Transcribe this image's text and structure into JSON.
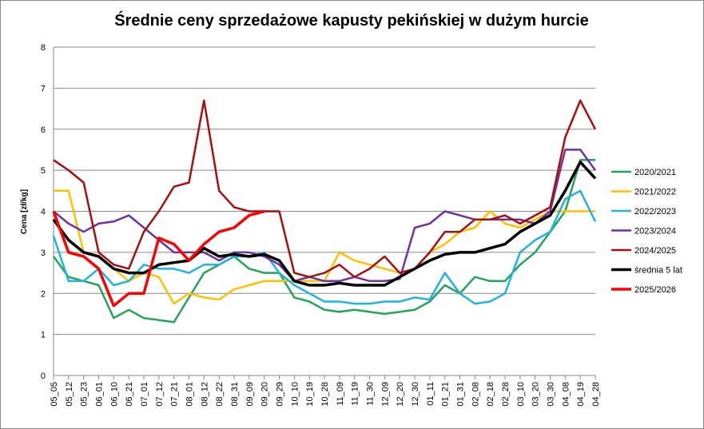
{
  "chart_data": {
    "type": "line",
    "title": "Średnie ceny sprzedażowe kapusty pekińskiej w dużym hurcie",
    "y_label": "Cena [zł/kg]",
    "categories": [
      "05_05",
      "05_12",
      "05_23",
      "06_01",
      "06_10",
      "06_21",
      "07_01",
      "07_12",
      "07_21",
      "08_01",
      "08_12",
      "08_22",
      "08_31",
      "09_09",
      "09_20",
      "09_29",
      "10_10",
      "10_19",
      "10_28",
      "11_09",
      "11_19",
      "11_30",
      "12_09",
      "12_20",
      "12_30",
      "01_11",
      "01_21",
      "01_31",
      "02_08",
      "02_18",
      "02_28",
      "03_10",
      "03_20",
      "03_30",
      "04_08",
      "04_19",
      "04_28"
    ],
    "ylim": [
      0,
      8
    ],
    "yticks": [
      0,
      1,
      2,
      3,
      4,
      5,
      6,
      7,
      8
    ],
    "grid": true,
    "legend": "right",
    "series": [
      {
        "name": "2020/2021",
        "color": "#23a45a",
        "values": [
          2.9,
          2.4,
          2.3,
          2.2,
          1.4,
          1.6,
          1.4,
          1.35,
          1.3,
          1.9,
          2.5,
          2.7,
          2.9,
          2.6,
          2.5,
          2.5,
          1.9,
          1.8,
          1.6,
          1.55,
          1.6,
          1.55,
          1.5,
          1.55,
          1.6,
          1.8,
          2.2,
          2.0,
          2.4,
          2.3,
          2.3,
          2.7,
          3.0,
          3.5,
          4.0,
          5.25,
          5.25
        ]
      },
      {
        "name": "2021/2022",
        "color": "#ffc000",
        "values": [
          4.5,
          4.5,
          3.0,
          2.9,
          2.6,
          2.3,
          2.5,
          2.4,
          1.75,
          2.0,
          1.9,
          1.85,
          2.1,
          2.2,
          2.3,
          2.3,
          2.3,
          2.3,
          2.3,
          3.0,
          2.8,
          2.7,
          2.6,
          2.5,
          2.6,
          3.0,
          3.2,
          3.5,
          3.6,
          4.0,
          3.7,
          3.6,
          3.8,
          4.0,
          4.0,
          4.0,
          4.0
        ]
      },
      {
        "name": "2022/2023",
        "color": "#1fb3e0",
        "values": [
          3.4,
          2.3,
          2.3,
          2.6,
          2.2,
          2.3,
          2.7,
          2.6,
          2.6,
          2.5,
          2.7,
          2.7,
          2.9,
          2.9,
          3.0,
          2.5,
          2.2,
          2.0,
          1.8,
          1.8,
          1.75,
          1.75,
          1.8,
          1.8,
          1.9,
          1.85,
          2.5,
          2.0,
          1.75,
          1.8,
          2.0,
          3.0,
          3.3,
          3.5,
          4.3,
          4.5,
          3.75
        ]
      },
      {
        "name": "2023/2024",
        "color": "#7030a0",
        "values": [
          4.0,
          3.7,
          3.5,
          3.7,
          3.75,
          3.9,
          3.6,
          3.3,
          3.0,
          3.0,
          3.0,
          2.8,
          3.0,
          3.0,
          2.9,
          2.7,
          2.3,
          2.4,
          2.3,
          2.3,
          2.4,
          2.3,
          2.3,
          2.35,
          3.6,
          3.7,
          4.0,
          3.9,
          3.8,
          3.8,
          3.8,
          3.8,
          3.7,
          4.0,
          5.5,
          5.5,
          5.0
        ]
      },
      {
        "name": "2024/2025",
        "color": "#a50f0f",
        "values": [
          5.25,
          5.0,
          4.7,
          3.0,
          2.7,
          2.6,
          3.5,
          4.0,
          4.6,
          4.7,
          6.7,
          4.5,
          4.1,
          4.0,
          4.0,
          4.0,
          2.5,
          2.4,
          2.5,
          2.7,
          2.4,
          2.6,
          2.9,
          2.5,
          2.6,
          3.0,
          3.5,
          3.5,
          3.8,
          3.8,
          3.9,
          3.7,
          3.9,
          4.1,
          5.8,
          6.7,
          6.0
        ]
      },
      {
        "name": "średnia 5 lat",
        "color": "#000000",
        "values": [
          3.8,
          3.3,
          3.0,
          2.9,
          2.6,
          2.5,
          2.5,
          2.7,
          2.75,
          2.8,
          3.1,
          2.9,
          2.95,
          2.9,
          2.95,
          2.8,
          2.3,
          2.2,
          2.2,
          2.25,
          2.2,
          2.2,
          2.2,
          2.4,
          2.6,
          2.8,
          2.95,
          3.0,
          3.0,
          3.1,
          3.2,
          3.5,
          3.7,
          3.9,
          4.5,
          5.2,
          4.8
        ]
      },
      {
        "name": "2025/2026",
        "color": "#ff0000",
        "values": [
          4.0,
          3.0,
          2.9,
          2.6,
          1.7,
          2.0,
          2.0,
          3.35,
          3.2,
          2.8,
          3.2,
          3.5,
          3.6,
          3.9,
          4.0,
          null,
          null,
          null,
          null,
          null,
          null,
          null,
          null,
          null,
          null,
          null,
          null,
          null,
          null,
          null,
          null,
          null,
          null,
          null,
          null,
          null,
          null
        ]
      }
    ]
  }
}
